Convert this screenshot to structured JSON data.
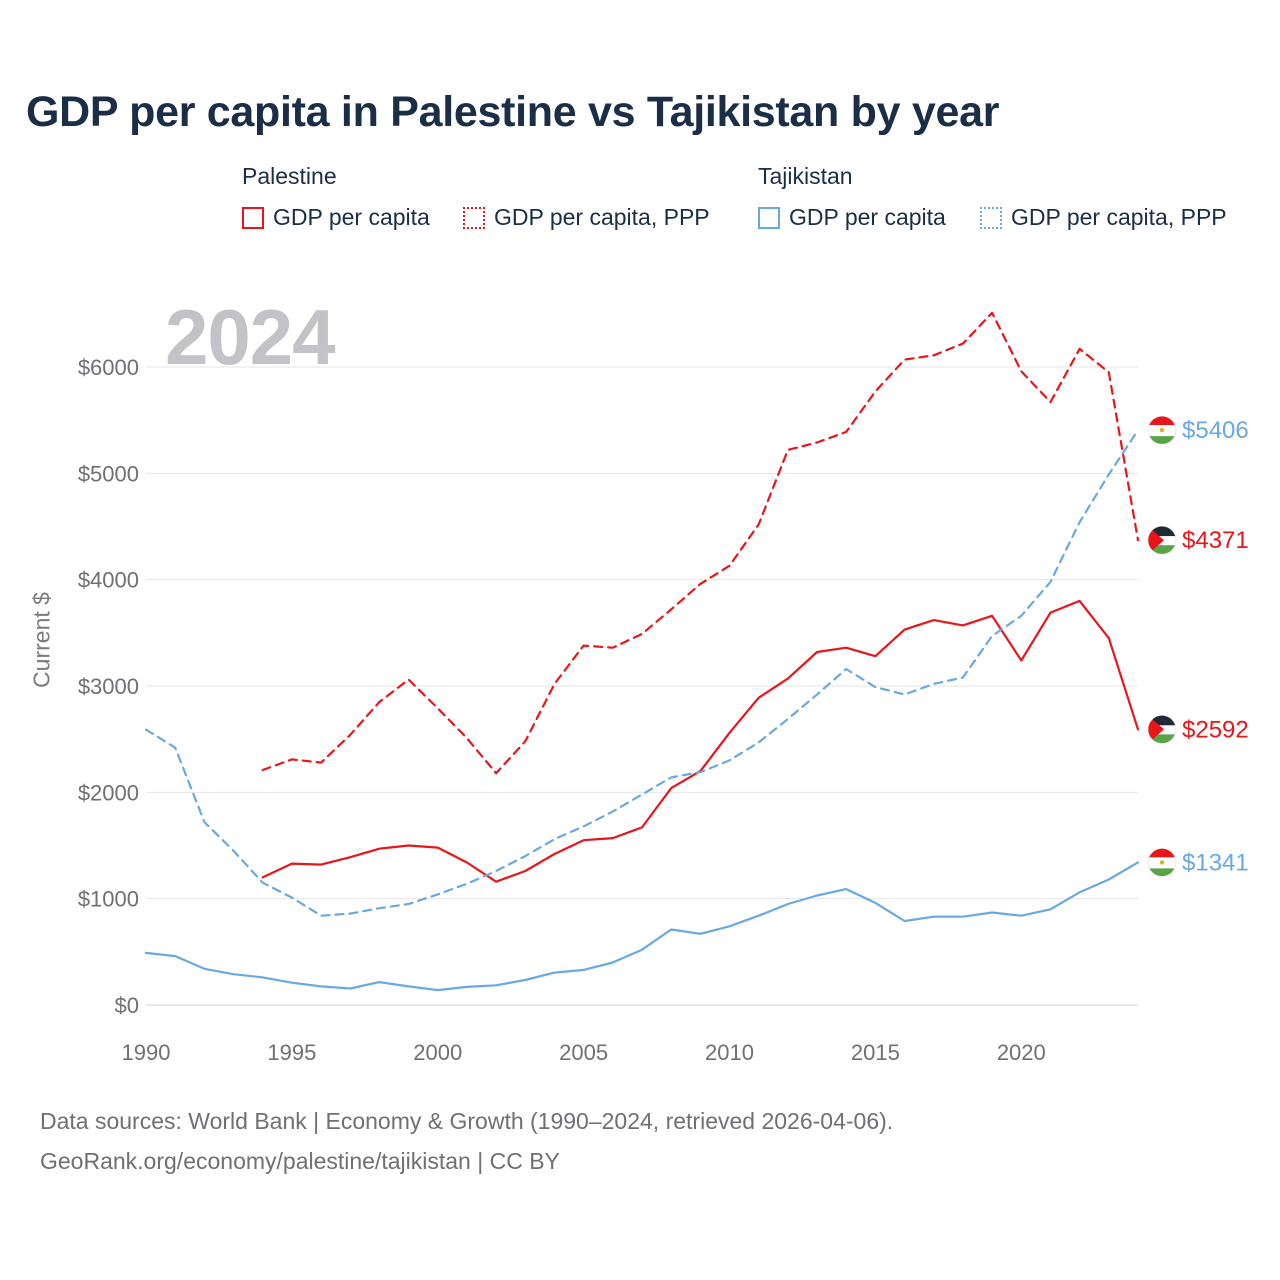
{
  "header": {
    "title": "GDP per capita in Palestine vs Tajikistan by year"
  },
  "legend": {
    "groups": [
      {
        "title": "Palestine",
        "items": [
          {
            "label": "GDP per capita",
            "style": "solid",
            "color": "#e8151b"
          },
          {
            "label": "GDP per capita, PPP",
            "style": "dotted",
            "color": "#e8151b"
          }
        ]
      },
      {
        "title": "Tajikistan",
        "items": [
          {
            "label": "GDP per capita",
            "style": "solid",
            "color": "#6aa8e0"
          },
          {
            "label": "GDP per capita, PPP",
            "style": "dotted",
            "color": "#6aa8e0"
          }
        ]
      }
    ]
  },
  "overlay": {
    "year": "2024"
  },
  "colors": {
    "palestine": "#e8151b",
    "tajikistan": "#6aa8e0",
    "grid": "#e6e6e6",
    "title": "#1b2e47"
  },
  "footer": {
    "line1": "Data sources: World Bank | Economy & Growth (1990–2024, retrieved 2026-04-06).",
    "line2": "GeoRank.org/economy/palestine/tajikistan | CC BY"
  },
  "chart_data": {
    "type": "line",
    "title": "GDP per capita in Palestine vs Tajikistan by year",
    "xlabel": "",
    "ylabel": "Current $",
    "xlim": [
      1990,
      2024
    ],
    "ylim": [
      0,
      6500
    ],
    "xticks": [
      1990,
      1995,
      2000,
      2005,
      2010,
      2015,
      2020
    ],
    "yticks": [
      0,
      1000,
      2000,
      3000,
      4000,
      5000,
      6000
    ],
    "ytick_labels": [
      "$0",
      "$1000",
      "$2000",
      "$3000",
      "$4000",
      "$5000",
      "$6000"
    ],
    "grid": true,
    "series": [
      {
        "name": "Palestine GDP per capita",
        "country": "Palestine",
        "color": "#e8151b",
        "dashed": false,
        "x": [
          1994,
          1995,
          1996,
          1997,
          1998,
          1999,
          2000,
          2001,
          2002,
          2003,
          2004,
          2005,
          2006,
          2007,
          2008,
          2009,
          2010,
          2011,
          2012,
          2013,
          2014,
          2015,
          2016,
          2017,
          2018,
          2019,
          2020,
          2021,
          2022,
          2023,
          2024
        ],
        "values": [
          1200,
          1330,
          1320,
          1390,
          1470,
          1500,
          1480,
          1340,
          1160,
          1260,
          1420,
          1550,
          1570,
          1670,
          2040,
          2200,
          2560,
          2890,
          3070,
          3320,
          3360,
          3280,
          3530,
          3620,
          3570,
          3660,
          3240,
          3690,
          3800,
          3450,
          2592
        ],
        "end_label": "$2592"
      },
      {
        "name": "Palestine GDP per capita, PPP",
        "country": "Palestine",
        "color": "#e8151b",
        "dashed": true,
        "x": [
          1994,
          1995,
          1996,
          1997,
          1998,
          1999,
          2000,
          2001,
          2002,
          2003,
          2004,
          2005,
          2006,
          2007,
          2008,
          2009,
          2010,
          2011,
          2012,
          2013,
          2014,
          2015,
          2016,
          2017,
          2018,
          2019,
          2020,
          2021,
          2022,
          2023,
          2024
        ],
        "values": [
          2210,
          2310,
          2280,
          2540,
          2850,
          3060,
          2790,
          2510,
          2180,
          2480,
          3020,
          3380,
          3360,
          3490,
          3720,
          3960,
          4130,
          4520,
          5220,
          5290,
          5390,
          5770,
          6070,
          6110,
          6220,
          6510,
          5960,
          5670,
          6170,
          5950,
          4371
        ],
        "end_label": "$4371"
      },
      {
        "name": "Tajikistan GDP per capita",
        "country": "Tajikistan",
        "color": "#6aa8e0",
        "dashed": false,
        "x": [
          1990,
          1991,
          1992,
          1993,
          1994,
          1995,
          1996,
          1997,
          1998,
          1999,
          2000,
          2001,
          2002,
          2003,
          2004,
          2005,
          2006,
          2007,
          2008,
          2009,
          2010,
          2011,
          2012,
          2013,
          2014,
          2015,
          2016,
          2017,
          2018,
          2019,
          2020,
          2021,
          2022,
          2023,
          2024
        ],
        "values": [
          490,
          460,
          340,
          290,
          260,
          210,
          175,
          155,
          215,
          175,
          140,
          170,
          185,
          235,
          305,
          330,
          400,
          520,
          710,
          670,
          740,
          840,
          950,
          1030,
          1090,
          960,
          790,
          830,
          830,
          870,
          840,
          900,
          1060,
          1180,
          1341
        ],
        "end_label": "$1341"
      },
      {
        "name": "Tajikistan GDP per capita, PPP",
        "country": "Tajikistan",
        "color": "#6aa8e0",
        "dashed": true,
        "x": [
          1990,
          1991,
          1992,
          1993,
          1994,
          1995,
          1996,
          1997,
          1998,
          1999,
          2000,
          2001,
          2002,
          2003,
          2004,
          2005,
          2006,
          2007,
          2008,
          2009,
          2010,
          2011,
          2012,
          2013,
          2014,
          2015,
          2016,
          2017,
          2018,
          2019,
          2020,
          2021,
          2022,
          2023,
          2024
        ],
        "values": [
          2590,
          2420,
          1720,
          1450,
          1150,
          1010,
          840,
          860,
          910,
          950,
          1040,
          1140,
          1260,
          1400,
          1560,
          1680,
          1820,
          1980,
          2140,
          2190,
          2300,
          2470,
          2690,
          2920,
          3160,
          2990,
          2920,
          3020,
          3080,
          3470,
          3660,
          3980,
          4540,
          4990,
          5406
        ],
        "end_label": "$5406"
      }
    ]
  }
}
